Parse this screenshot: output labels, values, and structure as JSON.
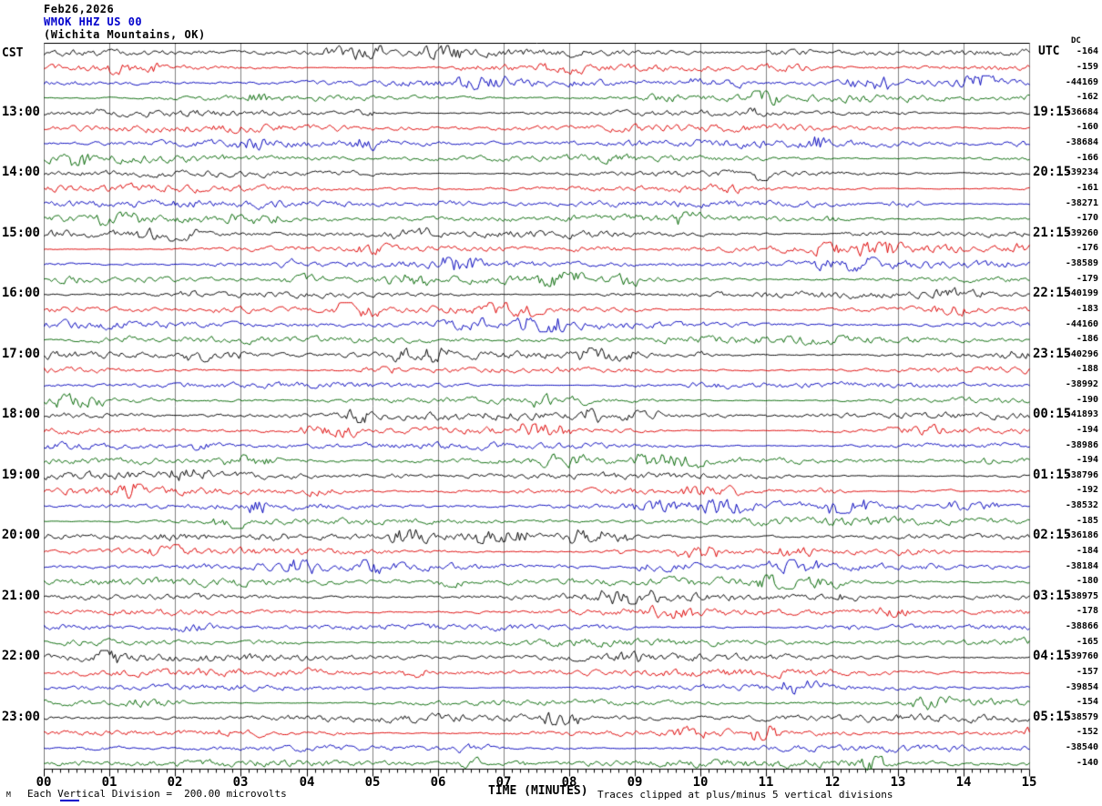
{
  "header": {
    "date": "Feb26,2026",
    "station": "WMOK HHZ US 00",
    "location": "(Wichita Mountains, OK)"
  },
  "left_axis": {
    "label": "CST"
  },
  "right_axis": {
    "label": "UTC",
    "dc_header": "DC"
  },
  "bottom_axis": {
    "label": "TIME (MINUTES)",
    "ticks": [
      "00",
      "01",
      "02",
      "03",
      "04",
      "05",
      "06",
      "07",
      "08",
      "09",
      "10",
      "11",
      "12",
      "13",
      "14",
      "15"
    ]
  },
  "footer": {
    "corner_mark": "M",
    "scale_note": "Each Vertical Division =  200.00 microvolts",
    "clip_note": "Traces clipped at plus/minus 5 vertical divisions"
  },
  "chart_data": {
    "type": "line",
    "title": "WMOK HHZ US 00 (Wichita Mountains, OK) helicorder, Feb26,2026",
    "xlabel": "TIME (MINUTES)",
    "x_range": [
      0,
      15
    ],
    "minutes_per_line": 15,
    "lines_per_hour": 4,
    "grid": "vertical gridline each minute, 8 subdivisions per minute on bottom ruler",
    "description": "48 helicorder lines of continuous background seismic noise, 15 minutes per line; line colors cycle black/red/blue/green; left labels CST hours, right labels UTC hours plus per-line DC offset",
    "scale": "Each Vertical Division =  200.00 microvolts",
    "clipping": "Traces clipped at plus/minus 5 vertical divisions",
    "trace_color_cycle": [
      "black",
      "red",
      "blue",
      "green"
    ],
    "colors": {
      "black": "#000000",
      "red": "#dd0000",
      "blue": "#0000bb",
      "green": "#006600"
    },
    "grid_color": "#808080",
    "traces": [
      {
        "color": "black",
        "cst": "",
        "utc": "",
        "dc": "-164"
      },
      {
        "color": "red",
        "cst": "",
        "utc": "",
        "dc": "-159"
      },
      {
        "color": "blue",
        "cst": "",
        "utc": "",
        "dc": "-44169"
      },
      {
        "color": "green",
        "cst": "",
        "utc": "",
        "dc": "-162"
      },
      {
        "color": "black",
        "cst": "13:00",
        "utc": "19:15",
        "dc": "-36684"
      },
      {
        "color": "red",
        "cst": "",
        "utc": "",
        "dc": "-160"
      },
      {
        "color": "blue",
        "cst": "",
        "utc": "",
        "dc": "-38684"
      },
      {
        "color": "green",
        "cst": "",
        "utc": "",
        "dc": "-166"
      },
      {
        "color": "black",
        "cst": "14:00",
        "utc": "20:15",
        "dc": "-39234"
      },
      {
        "color": "red",
        "cst": "",
        "utc": "",
        "dc": "-161"
      },
      {
        "color": "blue",
        "cst": "",
        "utc": "",
        "dc": "-38271"
      },
      {
        "color": "green",
        "cst": "",
        "utc": "",
        "dc": "-170"
      },
      {
        "color": "black",
        "cst": "15:00",
        "utc": "21:15",
        "dc": "-39260"
      },
      {
        "color": "red",
        "cst": "",
        "utc": "",
        "dc": "-176"
      },
      {
        "color": "blue",
        "cst": "",
        "utc": "",
        "dc": "-38589"
      },
      {
        "color": "green",
        "cst": "",
        "utc": "",
        "dc": "-179"
      },
      {
        "color": "black",
        "cst": "16:00",
        "utc": "22:15",
        "dc": "-40199"
      },
      {
        "color": "red",
        "cst": "",
        "utc": "",
        "dc": "-183"
      },
      {
        "color": "blue",
        "cst": "",
        "utc": "",
        "dc": "-44160"
      },
      {
        "color": "green",
        "cst": "",
        "utc": "",
        "dc": "-186"
      },
      {
        "color": "black",
        "cst": "17:00",
        "utc": "23:15",
        "dc": "-40296"
      },
      {
        "color": "red",
        "cst": "",
        "utc": "",
        "dc": "-188"
      },
      {
        "color": "blue",
        "cst": "",
        "utc": "",
        "dc": "-38992"
      },
      {
        "color": "green",
        "cst": "",
        "utc": "",
        "dc": "-190"
      },
      {
        "color": "black",
        "cst": "18:00",
        "utc": "00:15",
        "dc": "-41893"
      },
      {
        "color": "red",
        "cst": "",
        "utc": "",
        "dc": "-194"
      },
      {
        "color": "blue",
        "cst": "",
        "utc": "",
        "dc": "-38986"
      },
      {
        "color": "green",
        "cst": "",
        "utc": "",
        "dc": "-194"
      },
      {
        "color": "black",
        "cst": "19:00",
        "utc": "01:15",
        "dc": "-38796"
      },
      {
        "color": "red",
        "cst": "",
        "utc": "",
        "dc": "-192"
      },
      {
        "color": "blue",
        "cst": "",
        "utc": "",
        "dc": "-38532"
      },
      {
        "color": "green",
        "cst": "",
        "utc": "",
        "dc": "-185"
      },
      {
        "color": "black",
        "cst": "20:00",
        "utc": "02:15",
        "dc": "-36186"
      },
      {
        "color": "red",
        "cst": "",
        "utc": "",
        "dc": "-184"
      },
      {
        "color": "blue",
        "cst": "",
        "utc": "",
        "dc": "-38184"
      },
      {
        "color": "green",
        "cst": "",
        "utc": "",
        "dc": "-180"
      },
      {
        "color": "black",
        "cst": "21:00",
        "utc": "03:15",
        "dc": "-38975"
      },
      {
        "color": "red",
        "cst": "",
        "utc": "",
        "dc": "-178"
      },
      {
        "color": "blue",
        "cst": "",
        "utc": "",
        "dc": "-38866"
      },
      {
        "color": "green",
        "cst": "",
        "utc": "",
        "dc": "-165"
      },
      {
        "color": "black",
        "cst": "22:00",
        "utc": "04:15",
        "dc": "-39760"
      },
      {
        "color": "red",
        "cst": "",
        "utc": "",
        "dc": "-157"
      },
      {
        "color": "blue",
        "cst": "",
        "utc": "",
        "dc": "-39854"
      },
      {
        "color": "green",
        "cst": "",
        "utc": "",
        "dc": "-154"
      },
      {
        "color": "black",
        "cst": "23:00",
        "utc": "05:15",
        "dc": "-38579"
      },
      {
        "color": "red",
        "cst": "",
        "utc": "",
        "dc": "-152"
      },
      {
        "color": "blue",
        "cst": "",
        "utc": "",
        "dc": "-38540"
      },
      {
        "color": "green",
        "cst": "",
        "utc": "",
        "dc": "-140"
      }
    ]
  }
}
